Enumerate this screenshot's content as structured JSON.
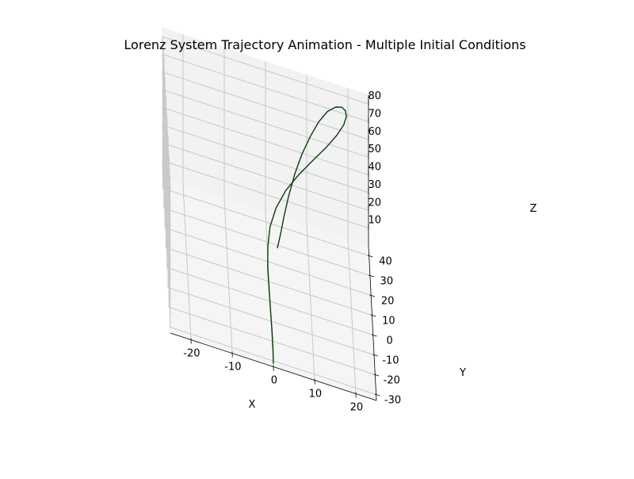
{
  "chart_data": {
    "type": "line",
    "projection": "3d",
    "title": "Lorenz System Trajectory Animation - Multiple Initial Conditions",
    "xlabel": "X",
    "ylabel": "Y",
    "zlabel": "Z",
    "xlim": [
      -25,
      25
    ],
    "ylim": [
      -33,
      45
    ],
    "zlim": [
      0,
      85
    ],
    "xticks": [
      -20,
      -10,
      0,
      10,
      20
    ],
    "yticks": [
      -30,
      -20,
      -10,
      0,
      10,
      20,
      30,
      40
    ],
    "zticks": [
      10,
      20,
      30,
      40,
      50,
      60,
      70,
      80
    ],
    "grid": true,
    "series": [
      {
        "color": "#0a3d0a",
        "x": [
          0.0,
          0.0,
          -0.1,
          -0.3,
          -0.5,
          -0.7,
          -0.5,
          0.2,
          1.8,
          4.3,
          7.5,
          11.0,
          14.4,
          17.1,
          18.9,
          19.6,
          19.4,
          18.5,
          17.0,
          15.0,
          12.8,
          10.6,
          8.4,
          6.5,
          4.9,
          3.6,
          2.6,
          1.8
        ],
        "y": [
          -33.0,
          -29.0,
          -24.0,
          -18.0,
          -11.5,
          -5.0,
          1.5,
          7.5,
          13.5,
          19.5,
          25.0,
          30.0,
          34.5,
          38.5,
          41.5,
          43.5,
          44.5,
          44.8,
          44.3,
          42.5,
          39.0,
          34.0,
          28.0,
          21.5,
          15.0,
          9.0,
          4.0,
          0.5
        ],
        "z": [
          2.0,
          5.5,
          9.5,
          14.0,
          19.0,
          24.0,
          29.0,
          34.0,
          39.0,
          44.0,
          49.0,
          54.0,
          59.0,
          63.5,
          67.5,
          70.5,
          72.5,
          73.5,
          73.0,
          71.0,
          67.5,
          63.0,
          58.0,
          52.5,
          46.5,
          40.5,
          35.0,
          31.0
        ]
      }
    ]
  }
}
